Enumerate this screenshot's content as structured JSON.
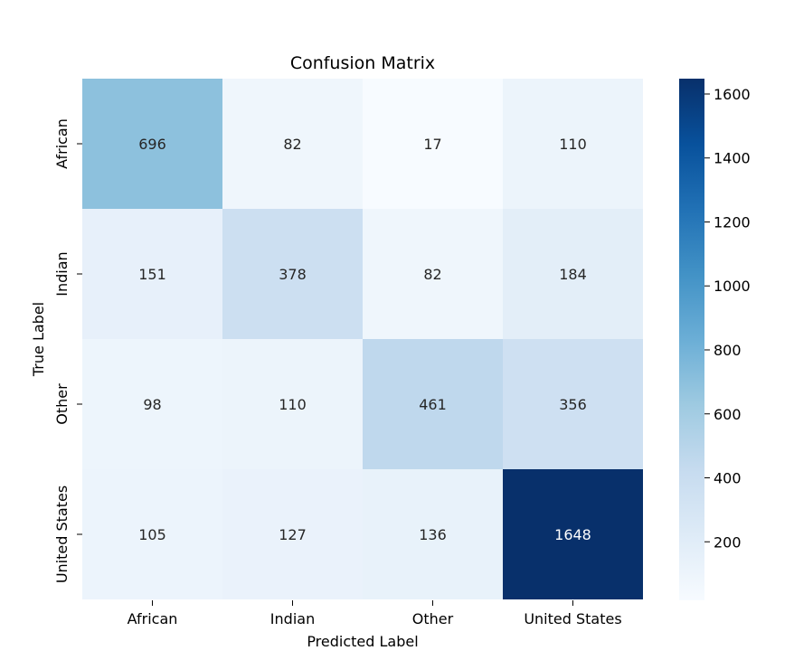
{
  "chart_data": {
    "type": "heatmap",
    "title": "Confusion Matrix",
    "xlabel": "Predicted Label",
    "ylabel": "True Label",
    "x_categories": [
      "African",
      "Indian",
      "Other",
      "United States"
    ],
    "y_categories": [
      "African",
      "Indian",
      "Other",
      "United States"
    ],
    "values": [
      [
        696,
        82,
        17,
        110
      ],
      [
        151,
        378,
        82,
        184
      ],
      [
        98,
        110,
        461,
        356
      ],
      [
        105,
        127,
        136,
        1648
      ]
    ],
    "colormap": "Blues",
    "colorbar": {
      "min": 17,
      "max": 1648,
      "ticks": [
        200,
        400,
        600,
        800,
        1000,
        1200,
        1400,
        1600
      ]
    }
  }
}
